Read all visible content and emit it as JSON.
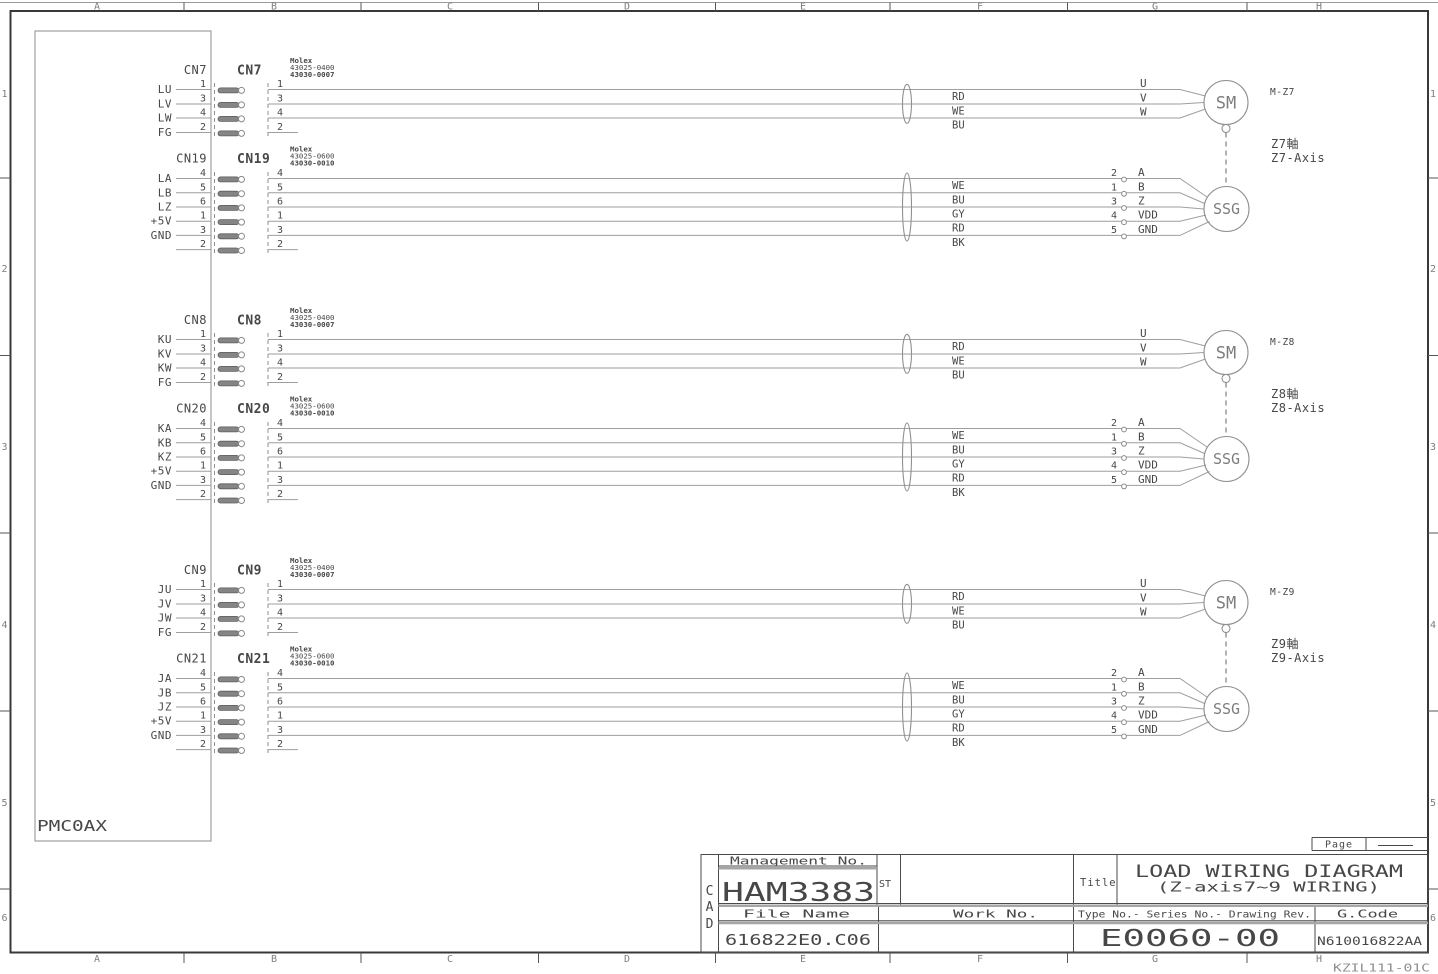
{
  "sheet": {
    "grid_cols": [
      "A",
      "B",
      "C",
      "D",
      "E",
      "F",
      "G",
      "H"
    ],
    "grid_rows": [
      "1",
      "2",
      "3",
      "4",
      "5",
      "6"
    ],
    "footer_code": "KZIL111-01C",
    "page_label": "Page"
  },
  "pmc_label": "PMC0AX",
  "blocks": [
    {
      "motor_id": "M-Z7",
      "axis_jp": "Z7軸",
      "axis_en": "Z7-Axis",
      "motor_symbol": "SM",
      "encoder_symbol": "SSG",
      "motor_conn": {
        "name": "CN7",
        "molex": [
          "Molex",
          "43025-0400",
          "43030-0007"
        ],
        "pins": [
          {
            "pin": "1",
            "signal": "LU",
            "color": "RD",
            "terminal": "U"
          },
          {
            "pin": "3",
            "signal": "LV",
            "color": "WE",
            "terminal": "V"
          },
          {
            "pin": "4",
            "signal": "LW",
            "color": "BU",
            "terminal": "W"
          },
          {
            "pin": "2",
            "signal": "FG",
            "color": "",
            "terminal": ""
          }
        ]
      },
      "encoder_conn": {
        "name": "CN19",
        "molex": [
          "Molex",
          "43025-0600",
          "43030-0010"
        ],
        "pins": [
          {
            "pin": "4",
            "signal": "LA",
            "color": "WE",
            "term_no": "2",
            "terminal": "A"
          },
          {
            "pin": "5",
            "signal": "LB",
            "color": "BU",
            "term_no": "1",
            "terminal": "B"
          },
          {
            "pin": "6",
            "signal": "LZ",
            "color": "GY",
            "term_no": "3",
            "terminal": "Z"
          },
          {
            "pin": "1",
            "signal": "+5V",
            "color": "RD",
            "term_no": "4",
            "terminal": "VDD"
          },
          {
            "pin": "3",
            "signal": "GND",
            "color": "BK",
            "term_no": "5",
            "terminal": "GND"
          },
          {
            "pin": "2",
            "signal": "",
            "color": "",
            "term_no": "",
            "terminal": ""
          }
        ]
      }
    },
    {
      "motor_id": "M-Z8",
      "axis_jp": "Z8軸",
      "axis_en": "Z8-Axis",
      "motor_symbol": "SM",
      "encoder_symbol": "SSG",
      "motor_conn": {
        "name": "CN8",
        "molex": [
          "Molex",
          "43025-0400",
          "43030-0007"
        ],
        "pins": [
          {
            "pin": "1",
            "signal": "KU",
            "color": "RD",
            "terminal": "U"
          },
          {
            "pin": "3",
            "signal": "KV",
            "color": "WE",
            "terminal": "V"
          },
          {
            "pin": "4",
            "signal": "KW",
            "color": "BU",
            "terminal": "W"
          },
          {
            "pin": "2",
            "signal": "FG",
            "color": "",
            "terminal": ""
          }
        ]
      },
      "encoder_conn": {
        "name": "CN20",
        "molex": [
          "Molex",
          "43025-0600",
          "43030-0010"
        ],
        "pins": [
          {
            "pin": "4",
            "signal": "KA",
            "color": "WE",
            "term_no": "2",
            "terminal": "A"
          },
          {
            "pin": "5",
            "signal": "KB",
            "color": "BU",
            "term_no": "1",
            "terminal": "B"
          },
          {
            "pin": "6",
            "signal": "KZ",
            "color": "GY",
            "term_no": "3",
            "terminal": "Z"
          },
          {
            "pin": "1",
            "signal": "+5V",
            "color": "RD",
            "term_no": "4",
            "terminal": "VDD"
          },
          {
            "pin": "3",
            "signal": "GND",
            "color": "BK",
            "term_no": "5",
            "terminal": "GND"
          },
          {
            "pin": "2",
            "signal": "",
            "color": "",
            "term_no": "",
            "terminal": ""
          }
        ]
      }
    },
    {
      "motor_id": "M-Z9",
      "axis_jp": "Z9軸",
      "axis_en": "Z9-Axis",
      "motor_symbol": "SM",
      "encoder_symbol": "SSG",
      "motor_conn": {
        "name": "CN9",
        "molex": [
          "Molex",
          "43025-0400",
          "43030-0007"
        ],
        "pins": [
          {
            "pin": "1",
            "signal": "JU",
            "color": "RD",
            "terminal": "U"
          },
          {
            "pin": "3",
            "signal": "JV",
            "color": "WE",
            "terminal": "V"
          },
          {
            "pin": "4",
            "signal": "JW",
            "color": "BU",
            "terminal": "W"
          },
          {
            "pin": "2",
            "signal": "FG",
            "color": "",
            "terminal": ""
          }
        ]
      },
      "encoder_conn": {
        "name": "CN21",
        "molex": [
          "Molex",
          "43025-0600",
          "43030-0010"
        ],
        "pins": [
          {
            "pin": "4",
            "signal": "JA",
            "color": "WE",
            "term_no": "2",
            "terminal": "A"
          },
          {
            "pin": "5",
            "signal": "JB",
            "color": "BU",
            "term_no": "1",
            "terminal": "B"
          },
          {
            "pin": "6",
            "signal": "JZ",
            "color": "GY",
            "term_no": "3",
            "terminal": "Z"
          },
          {
            "pin": "1",
            "signal": "+5V",
            "color": "RD",
            "term_no": "4",
            "terminal": "VDD"
          },
          {
            "pin": "3",
            "signal": "GND",
            "color": "BK",
            "term_no": "5",
            "terminal": "GND"
          },
          {
            "pin": "2",
            "signal": "",
            "color": "",
            "term_no": "",
            "terminal": ""
          }
        ]
      }
    }
  ],
  "title_block": {
    "cad_letters": [
      "C",
      "A",
      "D"
    ],
    "management_label": "Management No.",
    "management_no": "HAM3383",
    "st_label": "ST",
    "title_label": "Title",
    "title_line1": "LOAD WIRING DIAGRAM",
    "title_line2": "(Z-axis7~9 WIRING)",
    "file_name_label": "File Name",
    "file_name": "616822E0.C06",
    "work_no_label": "Work No.",
    "type_label": "Type No.- Series No.- Drawing Rev.",
    "type_value": "E0060-00",
    "gcode_label": "G.Code",
    "gcode_value": "N610016822AA"
  }
}
